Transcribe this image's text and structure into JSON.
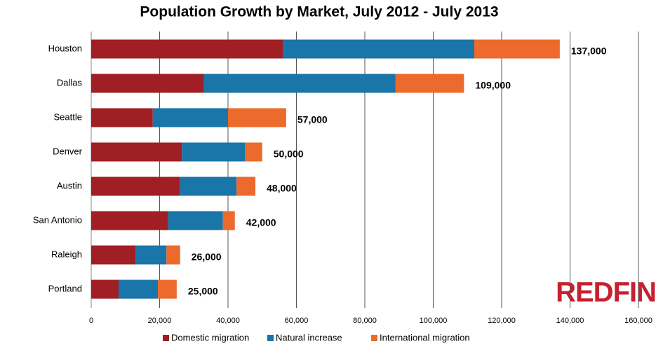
{
  "chart_data": {
    "type": "stacked-barh",
    "title": "Population Growth by Market, July 2012 - July 2013",
    "categories": [
      "Houston",
      "Dallas",
      "Seattle",
      "Denver",
      "Austin",
      "San Antonio",
      "Raleigh",
      "Portland"
    ],
    "series": [
      {
        "name": "Domestic migration",
        "color": "#a01f24",
        "values": [
          56000,
          33000,
          18000,
          26500,
          26000,
          22500,
          13000,
          8000
        ]
      },
      {
        "name": "Natural increase",
        "color": "#1a75a8",
        "values": [
          56000,
          56000,
          22000,
          18500,
          16500,
          16000,
          9000,
          11500
        ]
      },
      {
        "name": "International migration",
        "color": "#ec6a2c",
        "values": [
          25000,
          20000,
          17000,
          5000,
          5500,
          3500,
          4000,
          5500
        ]
      }
    ],
    "totals": [
      137000,
      109000,
      57000,
      50000,
      48000,
      42000,
      26000,
      25000
    ],
    "total_labels": [
      "137,000",
      "109,000",
      "57,000",
      "50,000",
      "48,000",
      "42,000",
      "26,000",
      "25,000"
    ],
    "xlim": [
      0,
      160000
    ],
    "xticks": [
      0,
      {
        "value": 20000,
        "label": "20,000"
      },
      {
        "value": 40000,
        "label": "40,000"
      },
      {
        "value": 60000,
        "label": "60,000"
      },
      {
        "value": 80000,
        "label": "80,000"
      },
      {
        "value": 100000,
        "label": "100,000"
      },
      {
        "value": 120000,
        "label": "120,000"
      },
      {
        "value": 140000,
        "label": "140,000"
      },
      {
        "value": 160000,
        "label": "160,000"
      }
    ],
    "grid": true,
    "legend": "bottom",
    "logo": "REDFIN"
  }
}
